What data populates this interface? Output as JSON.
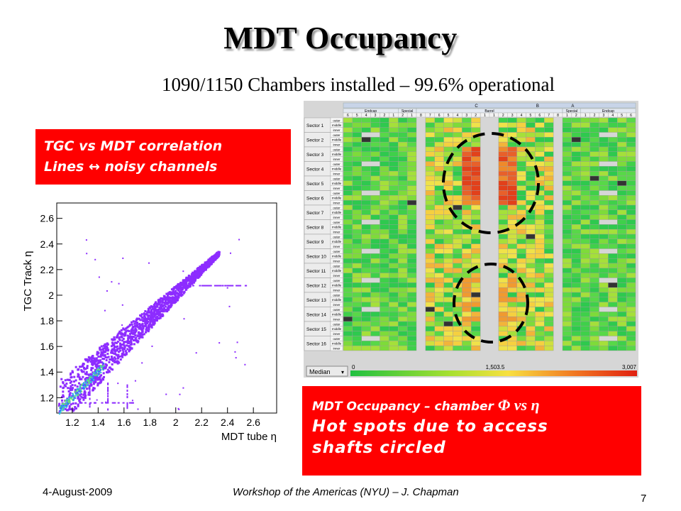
{
  "title": "MDT Occupancy",
  "subtitle": "1090/1150 Chambers installed – 99.6% operational",
  "tgc_box": {
    "line1": "TGC vs MDT correlation",
    "line2": "Lines ↔ noisy channels"
  },
  "mdt_box": {
    "line1": "MDT Occupancy – chamber ",
    "line1_symbols": "Φ vs η",
    "line2": "Hot spots due to access",
    "line3": "shafts circled"
  },
  "footer": {
    "date": "4-August-2009",
    "center": "Workshop of the Americas (NYU) – J. Chapman",
    "page": "7"
  },
  "scatter": {
    "ylabel": "TGC Track η",
    "xlabel": "MDT tube η",
    "yticks": [
      "1.2",
      "1.4",
      "1.6",
      "1.8",
      "2",
      "2.2",
      "2.4",
      "2.6"
    ],
    "xticks": [
      "1.2",
      "1.4",
      "1.6",
      "1.8",
      "2",
      "2.2",
      "2.4",
      "2.6"
    ]
  },
  "heatmap": {
    "groups": [
      "C",
      "B",
      "A"
    ],
    "regions": [
      "Endcap",
      "Special",
      "Barrel",
      "Special",
      "Endcap"
    ],
    "col_numbers": [
      "6",
      "5",
      "4",
      "3",
      "2",
      "1",
      "2",
      "1",
      "8",
      "7",
      "6",
      "5",
      "4",
      "3",
      "2",
      "1",
      "1",
      "2",
      "3",
      "4",
      "5",
      "6",
      "7",
      "8",
      "1",
      "2",
      "1",
      "2",
      "3",
      "4",
      "5",
      "6"
    ],
    "sectors": [
      "Sector 1",
      "Sector 2",
      "Sector 3",
      "Sector 4",
      "Sector 5",
      "Sector 6",
      "Sector 7",
      "Sector 8",
      "Sector 9",
      "Sector 10",
      "Sector 11",
      "Sector 12",
      "Sector 13",
      "Sector 14",
      "Sector 15",
      "Sector 16"
    ],
    "layers": [
      "outer",
      "middle",
      "inner"
    ],
    "scale_mode": "Median",
    "scale_labels": [
      "0",
      "1,503.5",
      "3,007"
    ]
  },
  "colors": {
    "red_box": "#ff0000",
    "hot": "#e83a10",
    "warm": "#f5d040",
    "cool": "#3fd04a"
  }
}
